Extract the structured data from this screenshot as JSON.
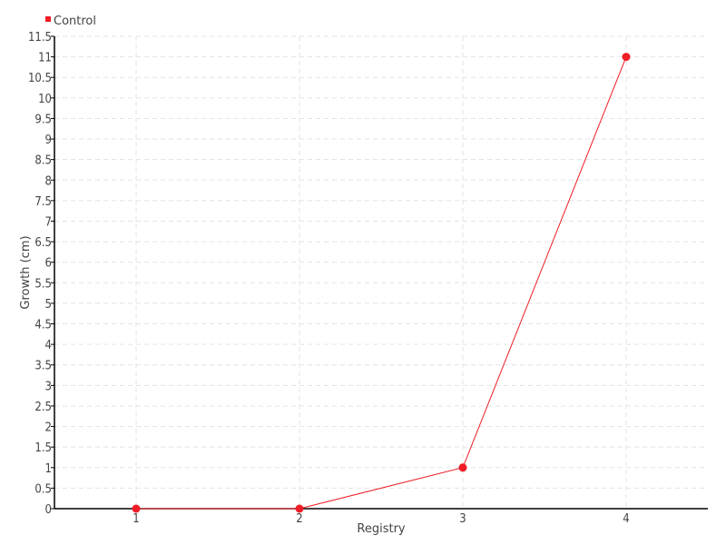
{
  "chart_data": {
    "type": "line",
    "title": "",
    "xlabel": "Registry",
    "ylabel": "Growth (cm)",
    "categories": [
      "1",
      "2",
      "3",
      "4"
    ],
    "series": [
      {
        "name": "Control",
        "values": [
          0,
          0,
          1,
          11
        ],
        "color": "#ee1c25"
      }
    ],
    "ylim": [
      0,
      11.5
    ],
    "ystep": 0.5,
    "xlim": [
      0.5,
      4.5
    ],
    "grid": true,
    "legend": "top-left"
  }
}
